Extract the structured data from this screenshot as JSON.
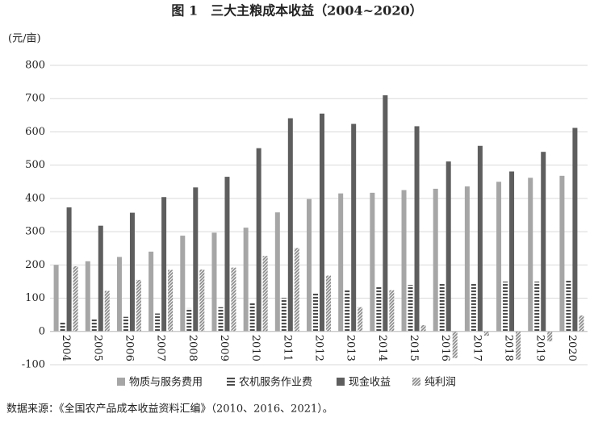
{
  "chart_data": {
    "type": "bar",
    "title": "图 1　三大主粮成本收益（2004~2020）",
    "y_label": "(元/亩)",
    "source": "数据来源：《全国农产品成本收益资料汇编》（2010、2016、2021）。",
    "categories": [
      "2004",
      "2005",
      "2006",
      "2007",
      "2008",
      "2009",
      "2010",
      "2011",
      "2012",
      "2013",
      "2014",
      "2015",
      "2016",
      "2017",
      "2018",
      "2019",
      "2020"
    ],
    "series": [
      {
        "name": "物质与服务费用",
        "color": "#a6a6a6",
        "pattern": "solid",
        "values": [
          200,
          211,
          224,
          240,
          288,
          297,
          312,
          358,
          398,
          415,
          417,
          425,
          429,
          436,
          450,
          462,
          468
        ]
      },
      {
        "name": "农机服务作业费",
        "color": "#4d4d4d",
        "pattern": "hlines",
        "values": [
          28,
          37,
          44,
          54,
          70,
          73,
          86,
          101,
          114,
          125,
          134,
          140,
          143,
          146,
          150,
          150,
          155
        ]
      },
      {
        "name": "现金收益",
        "color": "#5e5e5e",
        "pattern": "solid",
        "values": [
          373,
          318,
          357,
          404,
          433,
          465,
          551,
          641,
          655,
          624,
          710,
          617,
          511,
          558,
          481,
          540,
          612
        ]
      },
      {
        "name": "纯利润",
        "color": "#8a8a8a",
        "pattern": "diag",
        "values": [
          196,
          122,
          155,
          185,
          186,
          192,
          227,
          251,
          168,
          73,
          124,
          19,
          -80,
          -13,
          -85,
          -30,
          48
        ]
      }
    ],
    "ylim": [
      -100,
      800
    ],
    "yticks": [
      -100,
      0,
      100,
      200,
      300,
      400,
      500,
      600,
      700,
      800
    ],
    "grid": true,
    "legend": "bottom"
  }
}
